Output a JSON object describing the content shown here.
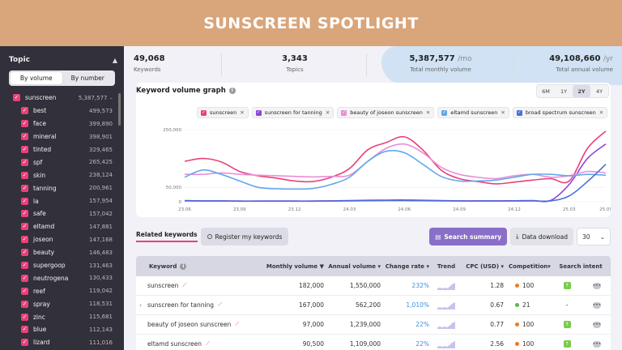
{
  "banner": {
    "title": "SUNSCREEN SPOTLIGHT"
  },
  "sidebar": {
    "title": "Topic",
    "segment": {
      "by_volume": "By volume",
      "by_number": "By number"
    },
    "root": {
      "name": "sunscreen",
      "value": "5,387,577",
      "dash": "–"
    },
    "items": [
      {
        "name": "best",
        "value": "499,573"
      },
      {
        "name": "face",
        "value": "399,890"
      },
      {
        "name": "mineral",
        "value": "398,901"
      },
      {
        "name": "tinted",
        "value": "329,465"
      },
      {
        "name": "spf",
        "value": "265,425"
      },
      {
        "name": "skin",
        "value": "238,124"
      },
      {
        "name": "tanning",
        "value": "200,961"
      },
      {
        "name": "la",
        "value": "157,954"
      },
      {
        "name": "safe",
        "value": "157,042"
      },
      {
        "name": "eltamd",
        "value": "147,881"
      },
      {
        "name": "joseon",
        "value": "147,168"
      },
      {
        "name": "beauty",
        "value": "146,483"
      },
      {
        "name": "supergoop",
        "value": "131,463"
      },
      {
        "name": "neutrogena",
        "value": "130,433"
      },
      {
        "name": "reef",
        "value": "119,042"
      },
      {
        "name": "spray",
        "value": "118,531"
      },
      {
        "name": "zinc",
        "value": "115,681"
      },
      {
        "name": "blue",
        "value": "112,143"
      },
      {
        "name": "lizard",
        "value": "111,016"
      }
    ]
  },
  "stats": {
    "keywords": {
      "value": "49,068",
      "label": "Keywords"
    },
    "topics": {
      "value": "3,343",
      "label": "Topics"
    },
    "monthly": {
      "value": "5,387,577",
      "unit": "/mo",
      "label": "Total monthly volume"
    },
    "annual": {
      "value": "49,108,660",
      "unit": "/yr",
      "label": "Total annual volume"
    }
  },
  "graph": {
    "title": "Keyword volume graph",
    "ranges": [
      "6M",
      "1Y",
      "2Y",
      "4Y"
    ],
    "active_range": "2Y"
  },
  "chart_data": {
    "type": "line",
    "x": [
      "23.06",
      "23.07",
      "23.08",
      "23.09",
      "23.10",
      "23.11",
      "23.12",
      "24.01",
      "24.02",
      "24.03",
      "24.04",
      "24.05",
      "24.06",
      "24.07",
      "24.08",
      "24.09",
      "24.10",
      "24.11",
      "24.12",
      "25.01",
      "25.02",
      "25.03",
      "25.04",
      "25.05"
    ],
    "xticks": [
      "23.06",
      "23.09",
      "23.12",
      "24.03",
      "24.06",
      "24.09",
      "24.12",
      "25.03",
      "25.05"
    ],
    "yticks": [
      "250,000",
      "50,000",
      "0"
    ],
    "ylim": [
      0,
      250000
    ],
    "grid": true,
    "series": [
      {
        "name": "sunscreen",
        "color": "#e8417a",
        "values": [
          140000,
          150000,
          138000,
          105000,
          90000,
          82000,
          72000,
          70000,
          85000,
          115000,
          180000,
          205000,
          225000,
          180000,
          110000,
          80000,
          70000,
          62000,
          68000,
          75000,
          80000,
          72000,
          185000,
          245000
        ]
      },
      {
        "name": "sunscreen for tanning",
        "color": "#8e44d8",
        "values": [
          4000,
          3000,
          3000,
          2500,
          2500,
          2500,
          2500,
          2500,
          3000,
          4000,
          5000,
          5500,
          6000,
          5000,
          4000,
          3000,
          3000,
          3000,
          3500,
          4000,
          5000,
          60000,
          150000,
          200000
        ]
      },
      {
        "name": "beauty of joseon sunscreen",
        "color": "#e98ed8",
        "values": [
          95000,
          95000,
          100000,
          95000,
          92000,
          90000,
          88000,
          86000,
          88000,
          92000,
          140000,
          185000,
          200000,
          170000,
          120000,
          95000,
          85000,
          80000,
          90000,
          95000,
          85000,
          90000,
          105000,
          100000
        ]
      },
      {
        "name": "eltamd sunscreen",
        "color": "#62a8ec",
        "values": [
          85000,
          110000,
          95000,
          72000,
          50000,
          45000,
          44000,
          46000,
          60000,
          85000,
          140000,
          175000,
          170000,
          130000,
          88000,
          72000,
          72000,
          75000,
          85000,
          95000,
          95000,
          90000,
          95000,
          92000
        ]
      },
      {
        "name": "broad spectrum sunscreen",
        "color": "#4a6fd8",
        "values": [
          3000,
          2500,
          2500,
          2000,
          2000,
          2000,
          2000,
          2000,
          2500,
          3000,
          3500,
          4000,
          4000,
          3500,
          3000,
          2500,
          2500,
          2500,
          2500,
          3000,
          3000,
          20000,
          70000,
          130000
        ]
      }
    ]
  },
  "toolbar": {
    "tab_related": "Related keywords",
    "tab_register": "Register my keywords",
    "search_summary": "Search summary",
    "data_download": "Data download",
    "rows_select": "30"
  },
  "table": {
    "headers": {
      "keyword": "Keyword",
      "monthly": "Monthly volume",
      "annual": "Annual volume",
      "change": "Change rate",
      "trend": "Trend",
      "cpc": "CPC (USD)",
      "competition": "Competition",
      "intent": "Search intent"
    },
    "rows": [
      {
        "keyword": "sunscreen",
        "monthly": "182,000",
        "annual": "1,550,000",
        "change": "232%",
        "cpc": "1.28",
        "competition": "100",
        "comp_color": "#f07a1e",
        "intent": "↑",
        "expand": ""
      },
      {
        "keyword": "sunscreen for tanning",
        "monthly": "167,000",
        "annual": "562,200",
        "change": "1,010%",
        "cpc": "0.67",
        "competition": "21",
        "comp_color": "#5ab84a",
        "intent": "-",
        "expand": "›"
      },
      {
        "keyword": "beauty of joseon sunscreen",
        "monthly": "97,000",
        "annual": "1,239,000",
        "change": "22%",
        "cpc": "0.77",
        "competition": "100",
        "comp_color": "#f07a1e",
        "intent": "↑",
        "expand": ""
      },
      {
        "keyword": "eltamd sunscreen",
        "monthly": "90,500",
        "annual": "1,109,000",
        "change": "22%",
        "cpc": "2.56",
        "competition": "100",
        "comp_color": "#f07a1e",
        "intent": "↑",
        "expand": ""
      }
    ]
  }
}
